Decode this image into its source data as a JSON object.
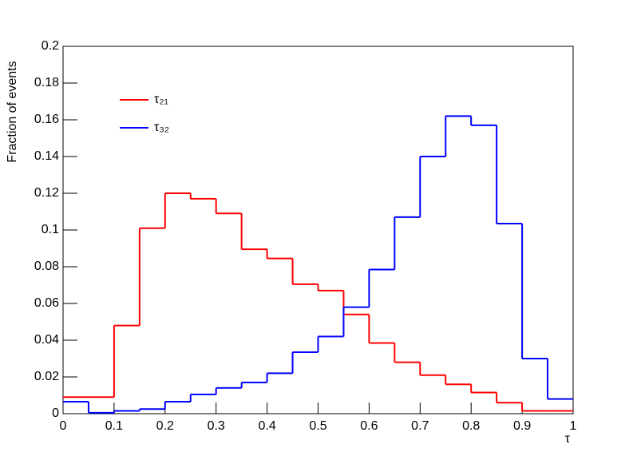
{
  "chart_data": {
    "type": "histogram",
    "x_label": "τ",
    "y_label": "Fraction of events",
    "bins": [
      0,
      0.05,
      0.1,
      0.15,
      0.2,
      0.25,
      0.3,
      0.35,
      0.4,
      0.45,
      0.5,
      0.55,
      0.6,
      0.65,
      0.7,
      0.75,
      0.8,
      0.85,
      0.9,
      0.95,
      1
    ],
    "series": [
      {
        "name": "τ₂₁",
        "color": "#ff0000",
        "values": [
          0.009,
          0.009,
          0.048,
          0.101,
          0.12,
          0.117,
          0.109,
          0.0895,
          0.0845,
          0.0705,
          0.067,
          0.054,
          0.0385,
          0.028,
          0.021,
          0.016,
          0.0115,
          0.006,
          0.0015,
          0.0015
        ]
      },
      {
        "name": "τ₃₂",
        "color": "#0000ff",
        "values": [
          0.0065,
          0.0005,
          0.0015,
          0.0025,
          0.0065,
          0.0105,
          0.014,
          0.017,
          0.022,
          0.0335,
          0.042,
          0.058,
          0.0785,
          0.107,
          0.14,
          0.162,
          0.157,
          0.1035,
          0.03,
          0.008
        ]
      }
    ],
    "xlim": [
      0,
      1
    ],
    "xticks": [
      0,
      0.1,
      0.2,
      0.3,
      0.4,
      0.5,
      0.6,
      0.7,
      0.8,
      0.9,
      1
    ],
    "ylim": [
      0,
      0.2
    ],
    "yticks": [
      0,
      0.02,
      0.04,
      0.06,
      0.08,
      0.1,
      0.12,
      0.14,
      0.16,
      0.18,
      0.2
    ],
    "legend": "upper-left"
  }
}
